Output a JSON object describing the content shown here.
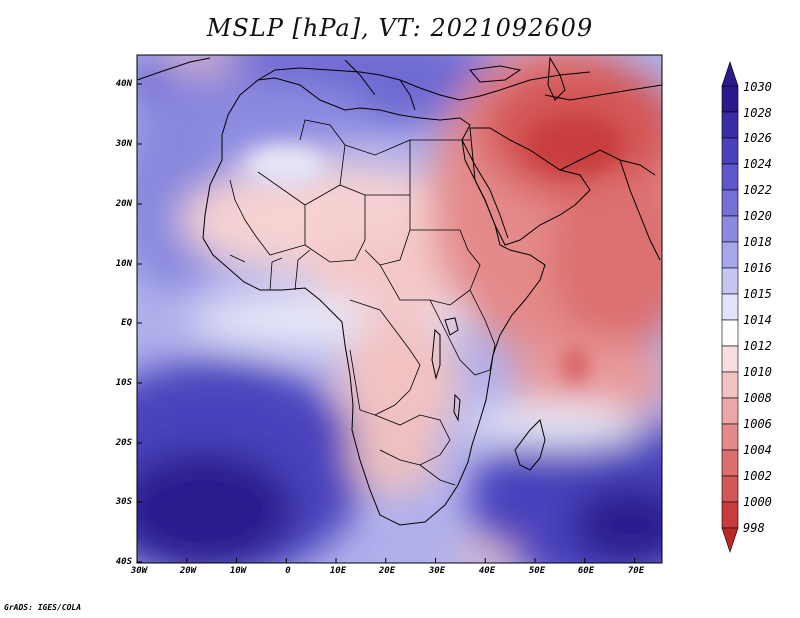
{
  "title": "MSLP [hPa], VT: 2021092609",
  "y_axis_labels": [
    "40N",
    "30N",
    "20N",
    "10N",
    "EQ",
    "10S",
    "20S",
    "30S",
    "40S"
  ],
  "x_axis_labels": [
    "30W",
    "20W",
    "10W",
    "0",
    "10E",
    "20E",
    "30E",
    "40E",
    "50E",
    "60E",
    "70E"
  ],
  "colorbar": {
    "levels": [
      "1030",
      "1028",
      "1026",
      "1024",
      "1022",
      "1020",
      "1018",
      "1016",
      "1015",
      "1014",
      "1012",
      "1010",
      "1008",
      "1006",
      "1004",
      "1002",
      "1000",
      "998"
    ],
    "colors": {
      "top_arrow": "#2a1a8e",
      "bottom_arrow": "#b82828",
      "bands_top_to_bottom": [
        "#2a1a8e",
        "#3a2ea8",
        "#4a42bc",
        "#5e58cc",
        "#7470d6",
        "#8c8ae0",
        "#a6a6ea",
        "#c6c6f2",
        "#e4e4f8",
        "#fefefe",
        "#f8dede",
        "#f2c2c2",
        "#eca6a6",
        "#e48a8a",
        "#dc6e6e",
        "#d45656",
        "#c83c3c"
      ]
    }
  },
  "credit": "GrADS: IGES/COLA"
}
